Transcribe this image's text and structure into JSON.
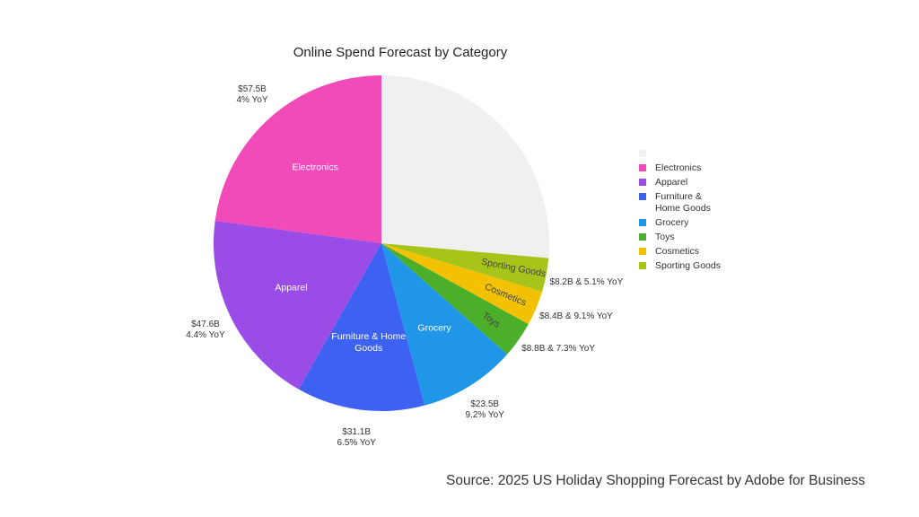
{
  "chart_data": {
    "type": "pie",
    "title": "Online Spend Forecast by Category",
    "categories": [
      null,
      "Electronics",
      "Apparel",
      "Furniture & Home Goods",
      "Grocery",
      "Toys",
      "Cosmetics",
      "Sporting Goods"
    ],
    "values": [
      66.4,
      57.5,
      47.6,
      31.1,
      23.5,
      8.8,
      8.4,
      8.2
    ],
    "value_labels": [
      null,
      [
        "$57.5B",
        "4% YoY"
      ],
      [
        "$47.6B",
        "4.4% YoY"
      ],
      [
        "$31.1B",
        "6.5% YoY"
      ],
      [
        "$23.5B",
        "9.2% YoY"
      ],
      [
        "$8.8B & 7.3% YoY"
      ],
      [
        "$8.4B & 9.1% YoY"
      ],
      [
        "$8.2B & 5.1% YoY"
      ]
    ],
    "colors": [
      "#f0f0f0",
      "#f04bb8",
      "#9b4be6",
      "#3d62f2",
      "#1f96e8",
      "#4caf2a",
      "#f2c200",
      "#a6c41a"
    ],
    "legend": "right",
    "source": "Source: 2025 US Holiday Shopping Forecast by Adobe for Business"
  }
}
